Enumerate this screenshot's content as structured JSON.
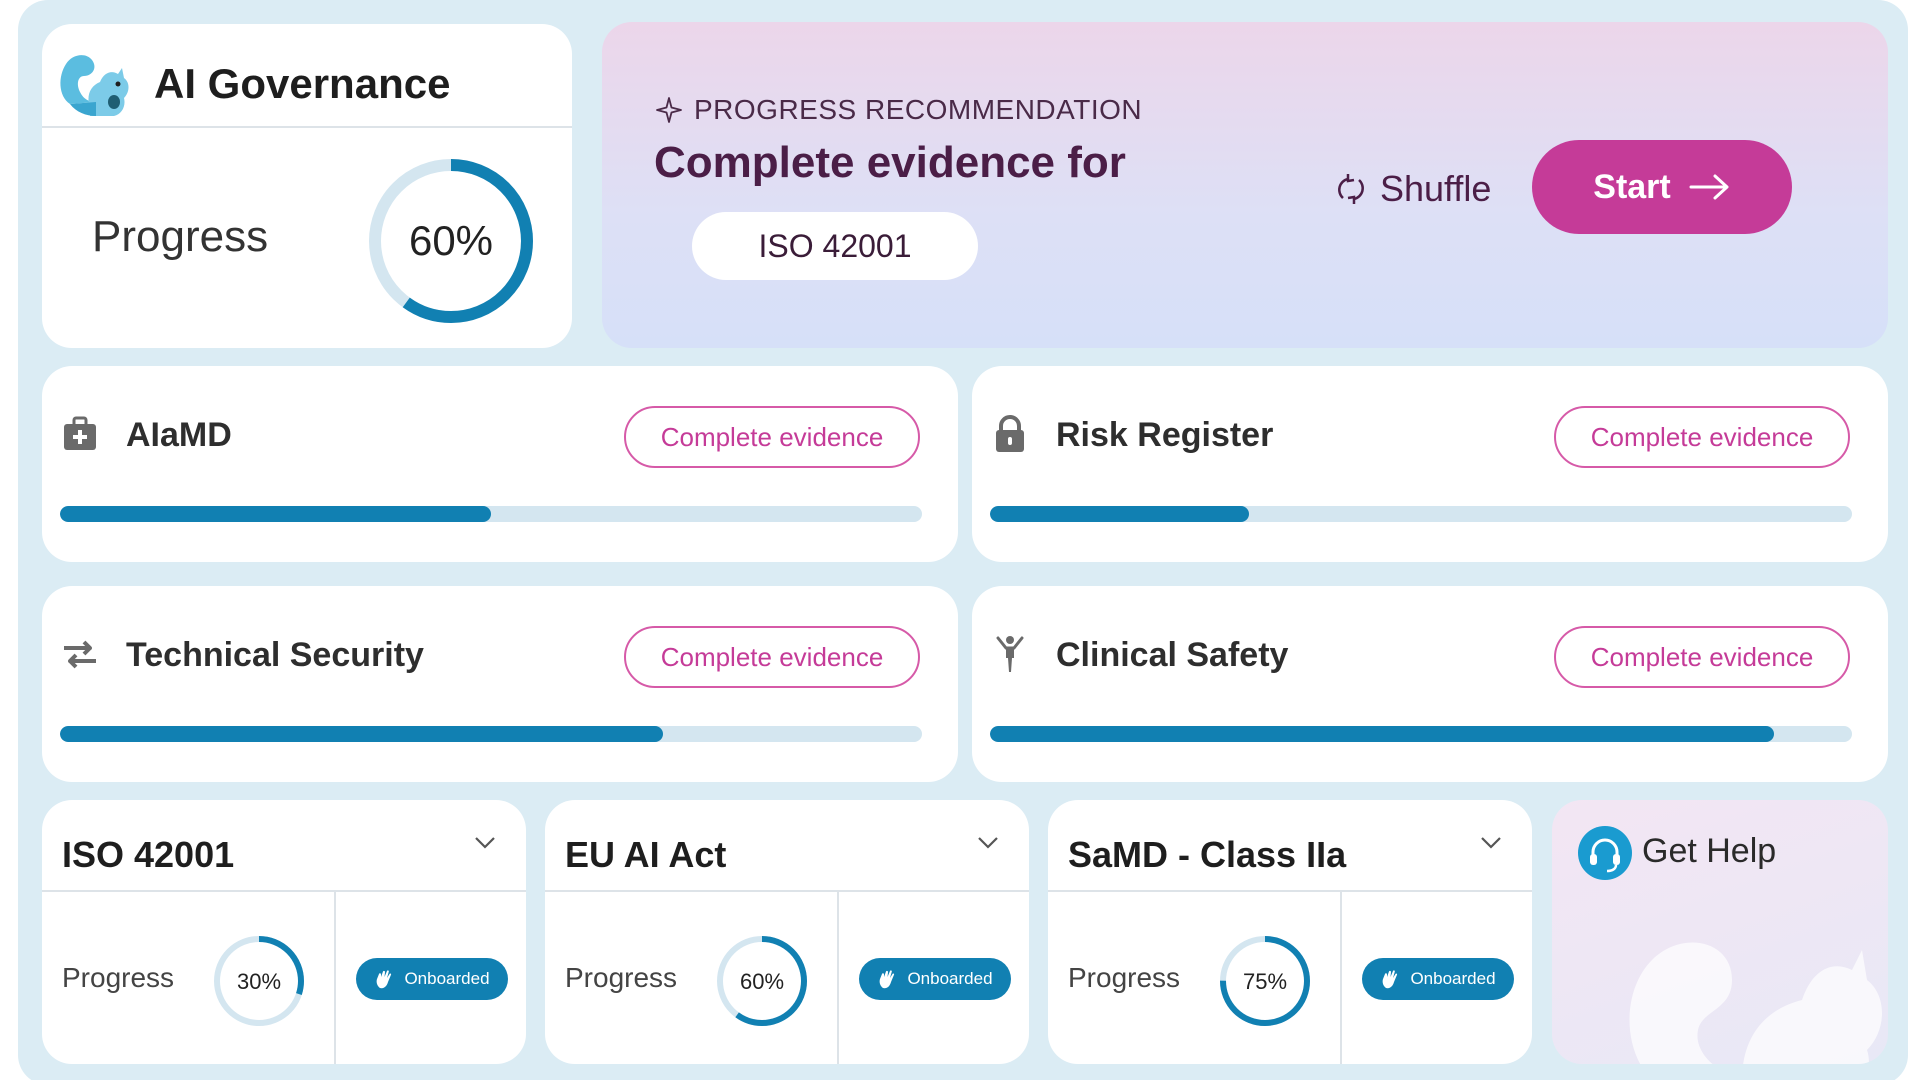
{
  "governance": {
    "title": "AI Governance",
    "progress_label": "Progress",
    "progress_value": 0.6,
    "progress_text": "60%"
  },
  "recommendation": {
    "kicker": "PROGRESS RECOMMENDATION",
    "title": "Complete evidence for",
    "target": "ISO 42001",
    "shuffle_label": "Shuffle",
    "start_label": "Start",
    "icons": {
      "kicker": "sparkle-icon",
      "shuffle": "refresh-icon",
      "start": "arrow-right-icon"
    },
    "accent_color": "#c53b98"
  },
  "categories": [
    {
      "title": "AIaMD",
      "icon": "medical-kit-icon",
      "button": "Complete evidence",
      "progress": 0.5
    },
    {
      "title": "Risk Register",
      "icon": "lock-icon",
      "button": "Complete evidence",
      "progress": 0.3
    },
    {
      "title": "Technical Security",
      "icon": "swap-arrows-icon",
      "button": "Complete evidence",
      "progress": 0.7
    },
    {
      "title": "Clinical Safety",
      "icon": "person-icon",
      "button": "Complete evidence",
      "progress": 0.91
    }
  ],
  "standards": [
    {
      "title": "ISO 42001",
      "progress_label": "Progress",
      "progress_value": 0.3,
      "progress_text": "30%",
      "badge": "Onboarded"
    },
    {
      "title": "EU AI Act",
      "progress_label": "Progress",
      "progress_value": 0.6,
      "progress_text": "60%",
      "badge": "Onboarded"
    },
    {
      "title": "SaMD - Class IIa",
      "progress_label": "Progress",
      "progress_value": 0.75,
      "progress_text": "75%",
      "badge": "Onboarded"
    }
  ],
  "help": {
    "label": "Get Help",
    "icon": "headset-icon"
  },
  "colors": {
    "primary": "#1180b2",
    "track": "#d4e6f0",
    "frame": "#dbecf4"
  }
}
